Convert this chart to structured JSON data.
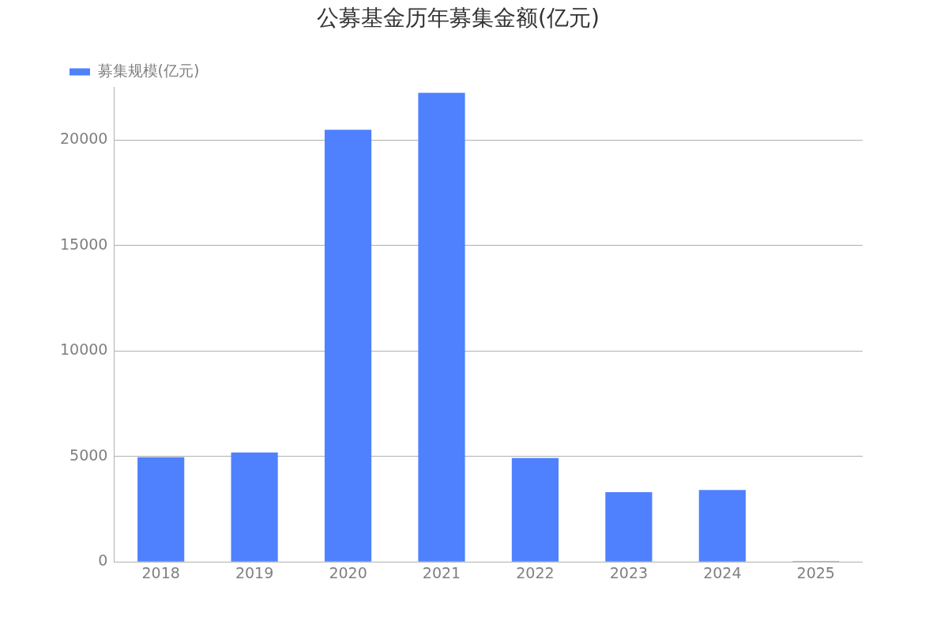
{
  "chart_data": {
    "type": "bar",
    "title": "公募基金历年募集金额(亿元)",
    "categories": [
      "2018",
      "2019",
      "2020",
      "2021",
      "2022",
      "2023",
      "2024",
      "2025"
    ],
    "series": [
      {
        "name": "募集规模(亿元)",
        "color": "#4f81ff",
        "values": [
          4960,
          5190,
          20490,
          22240,
          4920,
          3300,
          3410,
          40
        ]
      }
    ],
    "ylim": [
      0,
      22500
    ],
    "yticks": [
      0,
      5000,
      10000,
      15000,
      20000
    ],
    "grid": "y",
    "legend": "top left"
  }
}
